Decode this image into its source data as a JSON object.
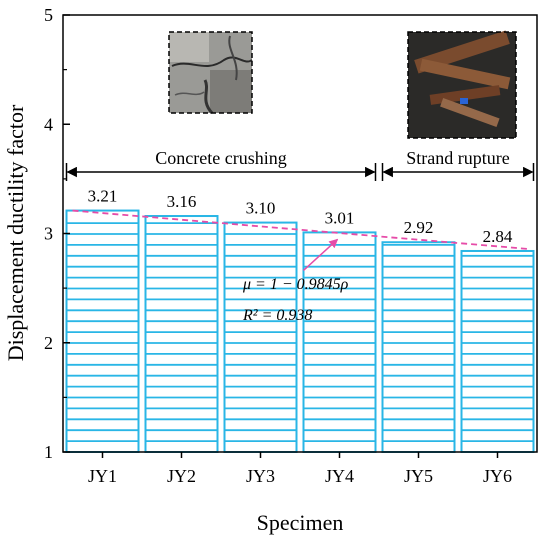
{
  "chart_data": {
    "type": "bar",
    "title": "",
    "xlabel": "Specimen",
    "ylabel": "Displacement ductility factor",
    "ylim": [
      1,
      5
    ],
    "yticks": [
      "1",
      "2",
      "3",
      "4",
      "5"
    ],
    "categories": [
      "JY1",
      "JY2",
      "JY3",
      "JY4",
      "JY5",
      "JY6"
    ],
    "values": [
      3.21,
      3.16,
      3.1,
      3.01,
      2.92,
      2.84
    ],
    "value_labels": [
      "3.21",
      "3.16",
      "3.10",
      "3.01",
      "2.92",
      "2.84"
    ],
    "bar_style": "horizontal-hatched",
    "grid": false,
    "fit_line": {
      "style": "dashed",
      "label_mu": "μ = 1 − 0.9845ρ",
      "label_r2": "R² = 0.938"
    },
    "annotations": [
      {
        "text": "Concrete crushing",
        "from": "JY1",
        "to": "JY4",
        "photo": "concrete-crushing-photo"
      },
      {
        "text": "Strand rupture",
        "from": "JY5",
        "to": "JY6",
        "photo": "strand-rupture-photo"
      }
    ],
    "colors": {
      "bar": "#29b6e6",
      "fit_line": "#e64ca8",
      "axis": "#000000"
    }
  }
}
